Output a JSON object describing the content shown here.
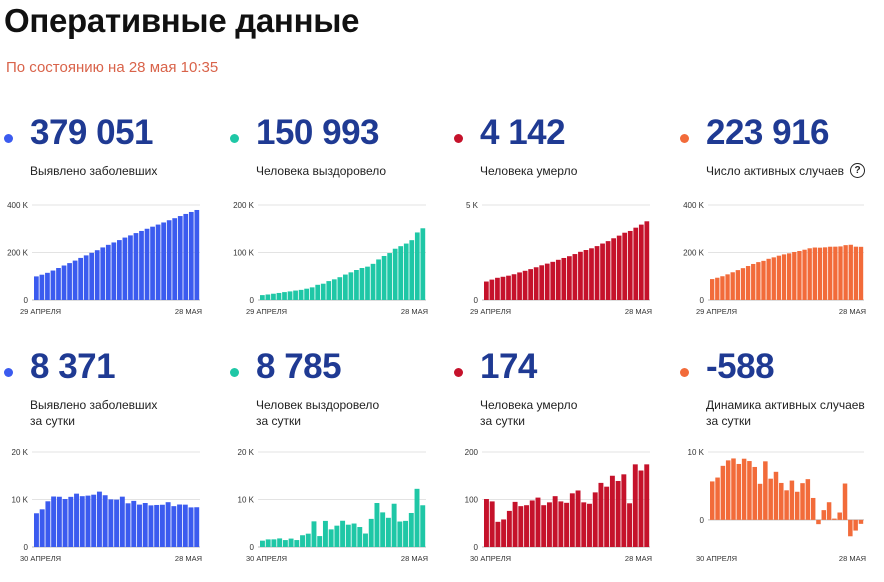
{
  "header": {
    "title": "Оперативные данные",
    "subtitle": "По состоянию на 28 мая 10:35"
  },
  "colors": {
    "blue": "#3b5bef",
    "teal": "#1fc7a6",
    "red": "#c5122b",
    "orange": "#f26b3a",
    "value": "#1f3a93"
  },
  "stats": [
    {
      "value": "379 051",
      "caption": [
        "Выявлено заболевших"
      ],
      "color": "#3b5bef"
    },
    {
      "value": "150 993",
      "caption": [
        "Человека выздоровело"
      ],
      "color": "#1fc7a6"
    },
    {
      "value": "4 142",
      "caption": [
        "Человека умерло"
      ],
      "color": "#c5122b"
    },
    {
      "value": "223 916",
      "caption": [
        "Число активных случаев"
      ],
      "color": "#f26b3a",
      "help_icon": "question-circle-icon"
    },
    {
      "value": "8 371",
      "caption": [
        "Выявлено заболевших",
        "за сутки"
      ],
      "color": "#3b5bef"
    },
    {
      "value": "8 785",
      "caption": [
        "Человек выздоровело",
        "за сутки"
      ],
      "color": "#1fc7a6"
    },
    {
      "value": "174",
      "caption": [
        "Человека умерло",
        "за сутки"
      ],
      "color": "#c5122b"
    },
    {
      "value": "-588",
      "caption": [
        "Динамика активных случаев",
        "за сутки"
      ],
      "color": "#f26b3a"
    }
  ],
  "chart_data": [
    {
      "type": "bar",
      "color": "#3b5bef",
      "x_start": "29 АПРЕЛЯ",
      "x_end": "28 МАЯ",
      "ylim": [
        0,
        400000
      ],
      "ytick_labels": [
        "400 K",
        "200 K",
        "0"
      ],
      "ytick_values": [
        400000,
        200000,
        0
      ],
      "values": [
        99399,
        106498,
        114431,
        124054,
        134687,
        145268,
        155370,
        165929,
        177160,
        187859,
        198676,
        209688,
        221344,
        232243,
        242271,
        252245,
        262843,
        272043,
        281752,
        290678,
        299941,
        308705,
        317554,
        326448,
        335882,
        344481,
        353427,
        362342,
        370680,
        379051
      ]
    },
    {
      "type": "bar",
      "color": "#1fc7a6",
      "x_start": "29 АПРЕЛЯ",
      "x_end": "28 МАЯ",
      "ylim": [
        0,
        200000
      ],
      "ytick_labels": [
        "200 K",
        "100 K",
        "0"
      ],
      "ytick_values": [
        200000,
        100000,
        0
      ],
      "values": [
        10286,
        11619,
        13220,
        14830,
        16639,
        18095,
        19865,
        21327,
        23803,
        26608,
        32007,
        34306,
        39801,
        43512,
        48003,
        53530,
        58226,
        63166,
        67373,
        70209,
        76130,
        85392,
        92681,
        98826,
        107936,
        113299,
        118798,
        125960,
        142208,
        150993
      ]
    },
    {
      "type": "bar",
      "color": "#c5122b",
      "x_start": "29 АПРЕЛЯ",
      "x_end": "28 МАЯ",
      "ylim": [
        0,
        5000
      ],
      "ytick_labels": [
        "5 K",
        "0"
      ],
      "ytick_values": [
        5000,
        0
      ],
      "values": [
        972,
        1073,
        1169,
        1222,
        1280,
        1356,
        1451,
        1537,
        1625,
        1723,
        1827,
        1915,
        2009,
        2116,
        2212,
        2305,
        2418,
        2537,
        2631,
        2722,
        2837,
        2972,
        3099,
        3249,
        3388,
        3541,
        3633,
        3807,
        3968,
        4142
      ]
    },
    {
      "type": "bar",
      "color": "#f26b3a",
      "x_start": "29 АПРЕЛЯ",
      "x_end": "28 МАЯ",
      "ylim": [
        0,
        400000
      ],
      "ytick_labels": [
        "400 K",
        "200 K",
        "0"
      ],
      "ytick_values": [
        400000,
        200000,
        0
      ],
      "values": [
        88141,
        93806,
        100042,
        108002,
        116768,
        125817,
        134054,
        143065,
        151732,
        159528,
        164842,
        173467,
        179534,
        186615,
        192056,
        196410,
        202199,
        206340,
        211748,
        217747,
        220974,
        220341,
        221774,
        224373,
        224558,
        225641,
        230996,
        232575,
        224504,
        223916
      ]
    },
    {
      "type": "bar",
      "color": "#3b5bef",
      "x_start": "30 АПРЕЛЯ",
      "x_end": "28 МАЯ",
      "ylim": [
        0,
        20000
      ],
      "ytick_labels": [
        "20 K",
        "10 K",
        "0"
      ],
      "ytick_values": [
        20000,
        10000,
        0
      ],
      "values": [
        7099,
        7933,
        9623,
        10633,
        10581,
        10102,
        10559,
        11231,
        10699,
        10817,
        11012,
        11656,
        10899,
        10028,
        9974,
        10598,
        9200,
        9709,
        8926,
        9263,
        8764,
        8849,
        8894,
        9434,
        8599,
        8946,
        8915,
        8338,
        8371
      ]
    },
    {
      "type": "bar",
      "color": "#1fc7a6",
      "x_start": "30 АПРЕЛЯ",
      "x_end": "28 МАЯ",
      "ylim": [
        0,
        20000
      ],
      "ytick_labels": [
        "20 K",
        "10 K",
        "0"
      ],
      "ytick_values": [
        20000,
        10000,
        0
      ],
      "values": [
        1333,
        1601,
        1610,
        1809,
        1456,
        1770,
        1462,
        2476,
        2805,
        5399,
        2299,
        5495,
        3711,
        4491,
        5527,
        4696,
        4940,
        4207,
        2836,
        5921,
        9262,
        7289,
        6145,
        9110,
        5363,
        5499,
        7162,
        12248,
        8785
      ]
    },
    {
      "type": "bar",
      "color": "#c5122b",
      "x_start": "30 АПРЕЛЯ",
      "x_end": "28 МАЯ",
      "ylim": [
        0,
        200
      ],
      "ytick_labels": [
        "200",
        "100",
        "0"
      ],
      "ytick_values": [
        200,
        100,
        0
      ],
      "values": [
        101,
        96,
        53,
        58,
        76,
        95,
        86,
        88,
        98,
        104,
        88,
        94,
        107,
        96,
        93,
        113,
        119,
        94,
        91,
        115,
        135,
        127,
        150,
        139,
        153,
        92,
        174,
        161,
        174
      ]
    },
    {
      "type": "bar",
      "color": "#f26b3a",
      "x_start": "30 АПРЕЛЯ",
      "x_end": "28 МАЯ",
      "ylim": [
        -4000,
        10000
      ],
      "ytick_labels": [
        "10 K",
        "0"
      ],
      "ytick_values": [
        10000,
        0
      ],
      "values": [
        5665,
        6236,
        7960,
        8766,
        9049,
        8237,
        9011,
        8667,
        7796,
        5314,
        8625,
        6067,
        7081,
        5441,
        4354,
        5789,
        4141,
        5408,
        5999,
        3227,
        -633,
        1433,
        2599,
        185,
        1083,
        5355,
        -2421,
        -1579,
        -588
      ]
    }
  ]
}
